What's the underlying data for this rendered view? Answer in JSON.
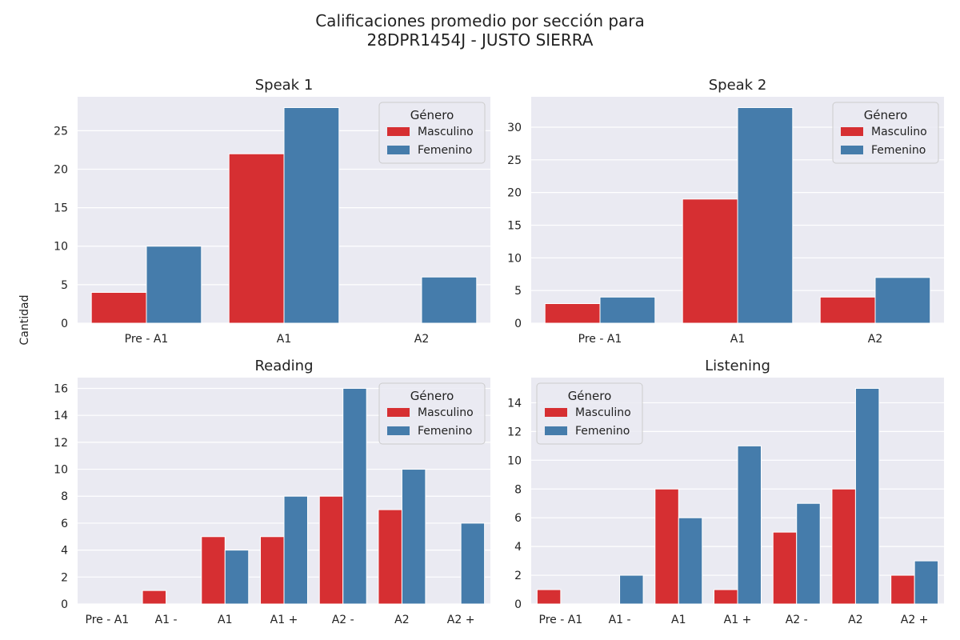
{
  "figure": {
    "title_line1": "Calificaciones promedio por sección para",
    "title_line2": "28DPR1454J - JUSTO SIERRA",
    "ylabel": "Cantidad"
  },
  "colors": {
    "masculino": "#d62f32",
    "femenino": "#457cab",
    "plot_bg": "#eaeaf2",
    "grid": "#ffffff"
  },
  "chart_data": [
    {
      "type": "bar",
      "title": "Speak 1",
      "categories": [
        "Pre - A1",
        "A1",
        "A2"
      ],
      "series": [
        {
          "name": "Masculino",
          "values": [
            4,
            22,
            0
          ]
        },
        {
          "name": "Femenino",
          "values": [
            10,
            28,
            6
          ]
        }
      ],
      "yticks": [
        0,
        5,
        10,
        15,
        20,
        25
      ],
      "ylim": [
        0,
        29.4
      ],
      "grid": true,
      "legend": {
        "title": "Género",
        "position": "top-right"
      }
    },
    {
      "type": "bar",
      "title": "Speak 2",
      "categories": [
        "Pre - A1",
        "A1",
        "A2"
      ],
      "series": [
        {
          "name": "Masculino",
          "values": [
            3,
            19,
            4
          ]
        },
        {
          "name": "Femenino",
          "values": [
            4,
            33,
            7
          ]
        }
      ],
      "yticks": [
        0,
        5,
        10,
        15,
        20,
        25,
        30
      ],
      "ylim": [
        0,
        34.65
      ],
      "grid": true,
      "legend": {
        "title": "Género",
        "position": "top-right"
      }
    },
    {
      "type": "bar",
      "title": "Reading",
      "categories": [
        "Pre - A1",
        "A1 -",
        "A1",
        "A1 +",
        "A2 -",
        "A2",
        "A2 +"
      ],
      "series": [
        {
          "name": "Masculino",
          "values": [
            0,
            1,
            5,
            5,
            8,
            7,
            0
          ]
        },
        {
          "name": "Femenino",
          "values": [
            0,
            0,
            4,
            8,
            16,
            10,
            6
          ]
        }
      ],
      "yticks": [
        0,
        2,
        4,
        6,
        8,
        10,
        12,
        14,
        16
      ],
      "ylim": [
        0,
        16.8
      ],
      "grid": true,
      "legend": {
        "title": "Género",
        "position": "top-right"
      }
    },
    {
      "type": "bar",
      "title": "Listening",
      "categories": [
        "Pre - A1",
        "A1 -",
        "A1",
        "A1 +",
        "A2 -",
        "A2",
        "A2 +"
      ],
      "series": [
        {
          "name": "Masculino",
          "values": [
            1,
            0,
            8,
            1,
            5,
            8,
            2
          ]
        },
        {
          "name": "Femenino",
          "values": [
            0,
            2,
            6,
            11,
            7,
            15,
            3
          ]
        }
      ],
      "yticks": [
        0,
        2,
        4,
        6,
        8,
        10,
        12,
        14
      ],
      "ylim": [
        0,
        15.75
      ],
      "grid": true,
      "legend": {
        "title": "Género",
        "position": "top-left"
      }
    }
  ]
}
